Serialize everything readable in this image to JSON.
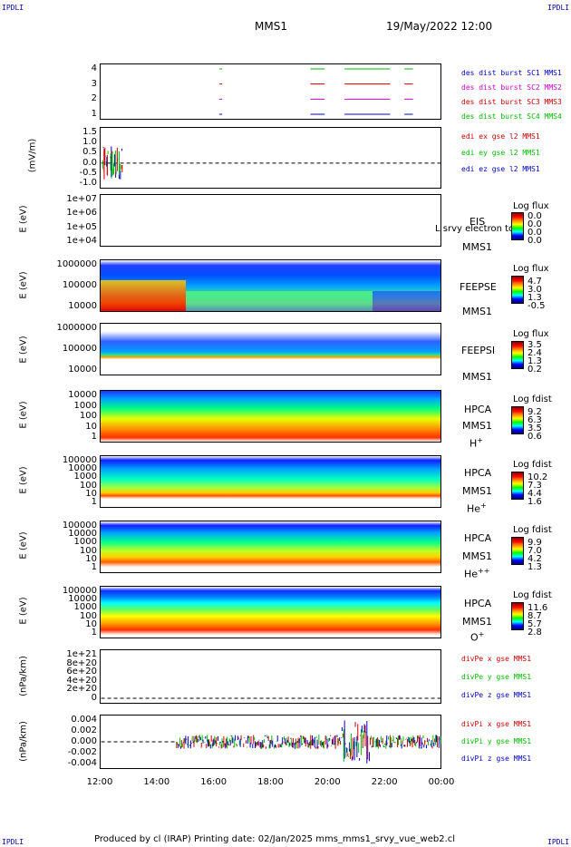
{
  "corners": {
    "tl": "IPDLI",
    "tr": "IPDLI",
    "bl": "IPDLI",
    "br": "IPDLI"
  },
  "header": {
    "title": "MMS1",
    "date": "19/May/2022 12:00"
  },
  "xaxis": {
    "ticks": [
      "12:00",
      "14:00",
      "16:00",
      "18:00",
      "20:00",
      "22:00",
      "00:00"
    ]
  },
  "footer": "Produced by cl (IRAP)   Printing date: 02/Jan/2025   mms_mms1_srvy_vue_web2.cl",
  "panels": {
    "burst": {
      "ticks": [
        "4",
        "3",
        "2",
        "1"
      ],
      "legend": [
        "des dist burst SC1 MMS1",
        "des dist burst SC2 MMS2",
        "des dist burst SC3 MMS3",
        "des dist burst SC4 MMS4"
      ],
      "colors": [
        "#0000cc",
        "#cc00cc",
        "#cc0000",
        "#00bb00"
      ]
    },
    "edi": {
      "ylabel": "(mV/m)",
      "ticks": [
        "1.5",
        "1.0",
        "0.5",
        "0.0",
        "-0.5",
        "-1.0"
      ],
      "legend": [
        "edi ex gse l2 MMS1",
        "edi ey gse l2 MMS1",
        "edi ez gse l2 MMS1"
      ],
      "colors": [
        "#cc0000",
        "#00bb00",
        "#0000cc"
      ]
    },
    "eis": {
      "ylabel": "E (eV)",
      "ticks": [
        "1e+07",
        "1e+06",
        "1e+05",
        "1e+04"
      ],
      "inst": "EIS",
      "inst2": "MMS1",
      "overlay": "L srvy electron tof",
      "cbtitle": "Log flux",
      "cbvals": [
        "0.0",
        "0.0",
        "0.0",
        "0.0"
      ]
    },
    "feepse": {
      "ylabel": "E (eV)",
      "ticks": [
        "1000000",
        "100000",
        "10000"
      ],
      "inst": "FEEPSE",
      "inst2": "MMS1",
      "cbtitle": "Log flux",
      "cbvals": [
        "4.7",
        "3.0",
        "1.3",
        "-0.5"
      ]
    },
    "feepsi": {
      "ylabel": "E (eV)",
      "ticks": [
        "1000000",
        "100000",
        "10000"
      ],
      "inst": "FEEPSI",
      "inst2": "MMS1",
      "cbtitle": "Log flux",
      "cbvals": [
        "3.5",
        "2.4",
        "1.3",
        "0.2"
      ]
    },
    "hpca_h": {
      "ylabel": "E (eV)",
      "ticks": [
        "10000",
        "1000",
        "100",
        "10",
        "1"
      ],
      "inst": "HPCA",
      "inst2": "MMS1",
      "species": "H",
      "charge": "+",
      "cbtitle": "Log fdist",
      "cbvals": [
        "9.2",
        "6.3",
        "3.5",
        "0.6"
      ]
    },
    "hpca_he": {
      "ylabel": "E (eV)",
      "ticks": [
        "100000",
        "10000",
        "1000",
        "100",
        "10",
        "1"
      ],
      "inst": "HPCA",
      "inst2": "MMS1",
      "species": "He",
      "charge": "+",
      "cbtitle": "Log fdist",
      "cbvals": [
        "10.2",
        "7.3",
        "4.4",
        "1.6"
      ]
    },
    "hpca_hepp": {
      "ylabel": "E (eV)",
      "ticks": [
        "100000",
        "10000",
        "1000",
        "100",
        "10",
        "1"
      ],
      "inst": "HPCA",
      "inst2": "MMS1",
      "species": "He",
      "charge": "++",
      "cbtitle": "Log fdist",
      "cbvals": [
        "9.9",
        "7.0",
        "4.2",
        "1.3"
      ]
    },
    "hpca_o": {
      "ylabel": "E (eV)",
      "ticks": [
        "100000",
        "10000",
        "1000",
        "100",
        "10",
        "1"
      ],
      "inst": "HPCA",
      "inst2": "MMS1",
      "species": "O",
      "charge": "+",
      "cbtitle": "Log fdist",
      "cbvals": [
        "11.6",
        "8.7",
        "5.7",
        "2.8"
      ]
    },
    "divpe": {
      "ylabel": "(nPa/km)",
      "ticks": [
        "1e+21",
        "8e+20",
        "6e+20",
        "4e+20",
        "2e+20",
        "0"
      ],
      "legend": [
        "divPe x gse MMS1",
        "divPe y gse MMS1",
        "divPe z gse MMS1"
      ],
      "colors": [
        "#cc0000",
        "#00bb00",
        "#0000cc"
      ]
    },
    "divpi": {
      "ylabel": "(nPa/km)",
      "ticks": [
        "0.004",
        "0.002",
        "0.000",
        "-0.002",
        "-0.004"
      ],
      "legend": [
        "divPi x gse MMS1",
        "divPi y gse MMS1",
        "divPi z gse MMS1"
      ],
      "colors": [
        "#cc0000",
        "#00bb00",
        "#0000cc"
      ]
    }
  },
  "chart_data": {
    "type": "line",
    "x_range": [
      "12:00",
      "00:00"
    ],
    "burst_intervals_hours": [
      [
        16.2,
        16.3
      ],
      [
        19.4,
        19.9
      ],
      [
        20.6,
        22.2
      ],
      [
        22.7,
        23.0
      ]
    ],
    "divpi_start_hour": 14.7,
    "divpi_ylim": [
      -0.005,
      0.005
    ],
    "edi_ylim": [
      -1.2,
      1.7
    ],
    "edi_active_hours": [
      12.0,
      12.8
    ]
  }
}
